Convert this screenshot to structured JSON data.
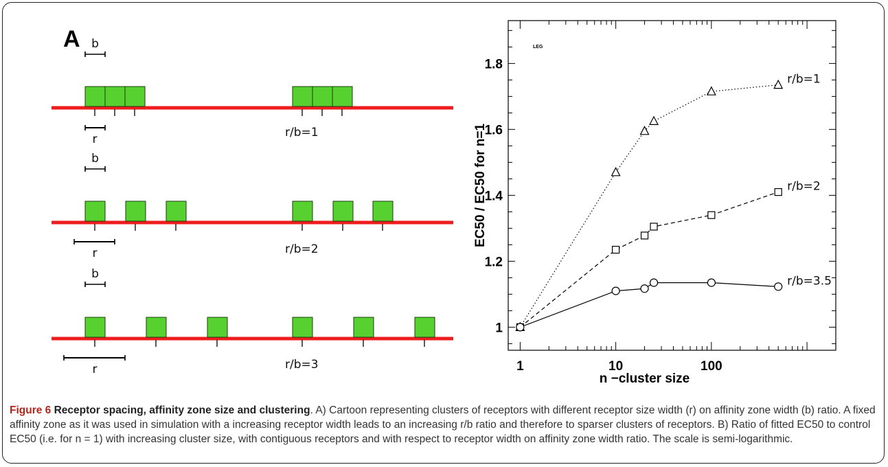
{
  "panel": {
    "label": "A"
  },
  "cartoon": {
    "colors": {
      "line": "#ee1c1c",
      "box": "#57d12f",
      "box_border": "#1d3d10",
      "scale": "#000000"
    },
    "b_label": "b",
    "r_label": "r",
    "rows": [
      {
        "ratio_label": "r/b=1"
      },
      {
        "ratio_label": "r/b=2"
      },
      {
        "ratio_label": "r/b=3"
      }
    ]
  },
  "chart_data": {
    "type": "line",
    "xscale": "log",
    "xlim": [
      0.75,
      2000
    ],
    "ylim": [
      0.93,
      1.93
    ],
    "x_ticks": [
      1,
      10,
      100
    ],
    "x_tick_labels": [
      "1",
      "10",
      "100"
    ],
    "y_ticks": [
      1,
      1.2,
      1.4,
      1.6,
      1.8
    ],
    "y_tick_labels": [
      "1",
      "1.2",
      "1.4",
      "1.6",
      "1.8"
    ],
    "xlabel": "n −cluster size",
    "ylabel": "EC50 / EC50 for n=1",
    "legend_text": "LEG",
    "series": [
      {
        "name": "r/b=1",
        "marker": "triangle",
        "dash": "dotted",
        "x": [
          1,
          10,
          20,
          25,
          100,
          500
        ],
        "y": [
          1.0,
          1.47,
          1.595,
          1.625,
          1.715,
          1.735
        ]
      },
      {
        "name": "r/b=2",
        "marker": "square",
        "dash": "dashed",
        "x": [
          1,
          10,
          20,
          25,
          100,
          500
        ],
        "y": [
          1.0,
          1.235,
          1.278,
          1.305,
          1.34,
          1.41
        ]
      },
      {
        "name": "r/b=3.5",
        "marker": "circle",
        "dash": "solid",
        "x": [
          1,
          10,
          20,
          25,
          100,
          500
        ],
        "y": [
          1.0,
          1.11,
          1.117,
          1.135,
          1.135,
          1.123
        ]
      }
    ]
  },
  "caption": {
    "figure_label": "Figure 6",
    "title": "Receptor spacing, affinity zone size and clustering",
    "body": ". A) Cartoon representing clusters of receptors with different receptor size width (r) on affinity zone width (b) ratio. A fixed affinity zone as it was used in simulation with a increasing receptor width leads to an increasing r/b ratio and therefore to sparser clusters of receptors. B) Ratio of fitted EC50 to control EC50 (i.e. for n = 1) with increasing cluster size, with contiguous receptors and with respect to receptor width on affinity zone width ratio. The scale is semi-logarithmic."
  }
}
